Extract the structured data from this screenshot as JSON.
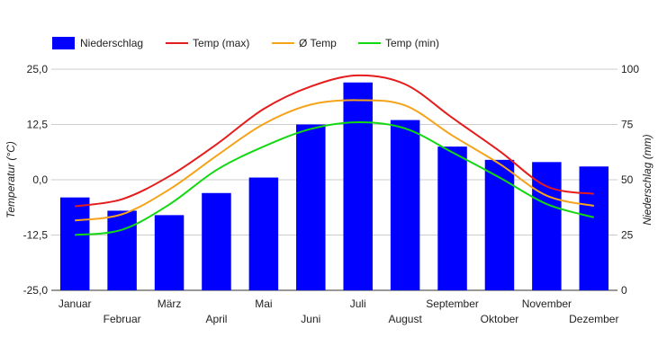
{
  "chart_data": {
    "type": "bar+line",
    "categories": [
      "Januar",
      "Februar",
      "März",
      "April",
      "Mai",
      "Juni",
      "Juli",
      "August",
      "September",
      "Oktober",
      "November",
      "Dezember"
    ],
    "bars": {
      "name": "Niederschlag",
      "axis": "right",
      "values": [
        42,
        36,
        34,
        44,
        51,
        75,
        94,
        77,
        65,
        59,
        58,
        56
      ],
      "color": "#0000ff"
    },
    "series": [
      {
        "name": "Temp (max)",
        "axis": "left",
        "color": "#e51c1c",
        "values": [
          -6.0,
          -4.4,
          0.8,
          8.0,
          16.0,
          21.1,
          23.6,
          21.6,
          14.0,
          6.5,
          -1.5,
          -3.2
        ]
      },
      {
        "name": "Ø Temp",
        "axis": "left",
        "color": "#f5a31a",
        "values": [
          -9.2,
          -7.8,
          -2.2,
          5.4,
          12.6,
          17.0,
          18.0,
          16.8,
          10.0,
          3.6,
          -3.6,
          -5.9
        ]
      },
      {
        "name": "Temp (min)",
        "axis": "left",
        "color": "#12d812",
        "values": [
          -12.5,
          -11.3,
          -5.6,
          2.2,
          7.5,
          11.5,
          13.0,
          11.6,
          6.2,
          0.5,
          -5.5,
          -8.5
        ]
      }
    ],
    "y_left": {
      "label": "Temperatur (°C)",
      "min": -25,
      "max": 25,
      "ticks": [
        -25,
        -12.5,
        0,
        12.5,
        25
      ],
      "tick_labels": [
        "-25,0",
        "-12,5",
        "0,0",
        "12,5",
        "25,0"
      ]
    },
    "y_right": {
      "label": "Niederschlag (mm)",
      "min": 0,
      "max": 100,
      "ticks": [
        0,
        25,
        50,
        75,
        100
      ],
      "tick_labels": [
        "0",
        "25",
        "50",
        "75",
        "100"
      ]
    },
    "legend_position": "top-left",
    "grid": true
  }
}
